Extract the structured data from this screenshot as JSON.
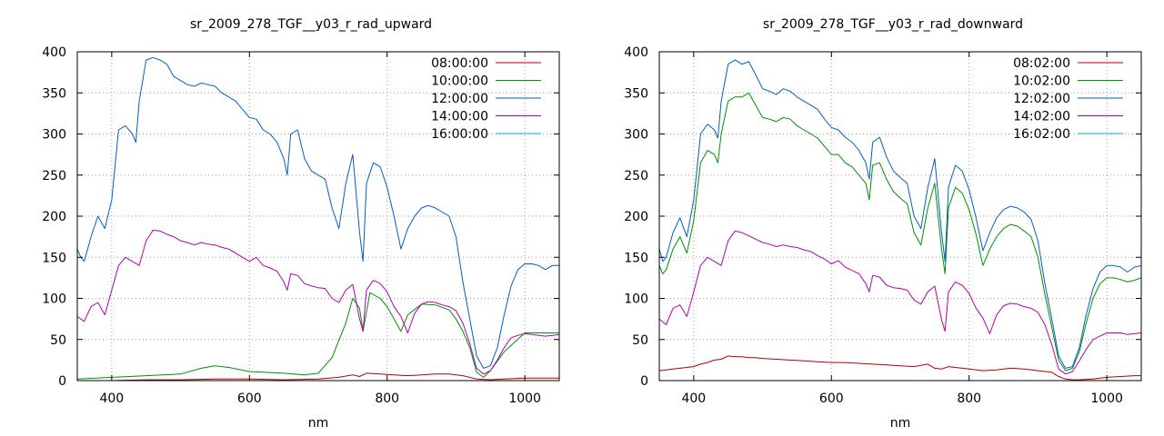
{
  "chart_data": [
    {
      "type": "line",
      "title": "sr_2009_278_TGF__y03_r_rad_upward",
      "xlabel": "nm",
      "ylabel": "",
      "xlim": [
        350,
        1050
      ],
      "ylim": [
        0,
        400
      ],
      "xticks": [
        400,
        600,
        800,
        1000
      ],
      "yticks": [
        0,
        50,
        100,
        150,
        200,
        250,
        300,
        350,
        400
      ],
      "grid": true,
      "legend_position": "top-right",
      "series": [
        {
          "name": "08:00:00",
          "color": "#b00000",
          "x": [
            350,
            400,
            450,
            500,
            550,
            600,
            650,
            700,
            730,
            750,
            760,
            770,
            790,
            810,
            830,
            850,
            870,
            890,
            910,
            930,
            950,
            970,
            1000,
            1050
          ],
          "y": [
            0,
            0,
            1,
            1,
            2,
            2,
            1,
            2,
            4,
            7,
            5,
            9,
            8,
            7,
            6,
            7,
            8,
            8,
            6,
            2,
            1,
            2,
            3,
            3
          ]
        },
        {
          "name": "10:00:00",
          "color": "#009000",
          "x": [
            350,
            400,
            450,
            500,
            530,
            550,
            570,
            600,
            650,
            680,
            700,
            720,
            740,
            750,
            760,
            765,
            775,
            790,
            800,
            810,
            820,
            830,
            850,
            870,
            890,
            900,
            910,
            920,
            930,
            940,
            950,
            970,
            1000,
            1050
          ],
          "y": [
            2,
            4,
            6,
            8,
            15,
            18,
            16,
            11,
            9,
            7,
            9,
            28,
            70,
            100,
            88,
            60,
            107,
            100,
            90,
            75,
            60,
            80,
            93,
            92,
            86,
            75,
            60,
            40,
            10,
            4,
            12,
            35,
            58,
            58
          ]
        },
        {
          "name": "12:00:00",
          "color": "#0060c0",
          "x": [
            350,
            355,
            360,
            370,
            380,
            390,
            400,
            410,
            420,
            430,
            435,
            440,
            450,
            460,
            470,
            480,
            490,
            500,
            510,
            520,
            530,
            540,
            550,
            560,
            570,
            580,
            590,
            600,
            610,
            620,
            630,
            640,
            650,
            655,
            660,
            670,
            680,
            690,
            700,
            710,
            720,
            730,
            740,
            750,
            760,
            765,
            770,
            780,
            790,
            800,
            810,
            820,
            830,
            840,
            850,
            860,
            870,
            880,
            890,
            900,
            910,
            920,
            930,
            940,
            950,
            960,
            970,
            980,
            990,
            1000,
            1010,
            1020,
            1030,
            1040,
            1050
          ],
          "y": [
            160,
            150,
            145,
            175,
            200,
            185,
            220,
            305,
            310,
            300,
            290,
            340,
            390,
            393,
            390,
            385,
            370,
            365,
            360,
            358,
            362,
            360,
            358,
            350,
            345,
            340,
            330,
            320,
            318,
            305,
            300,
            290,
            270,
            250,
            300,
            305,
            270,
            255,
            250,
            245,
            210,
            185,
            240,
            275,
            180,
            145,
            240,
            265,
            260,
            235,
            200,
            160,
            185,
            200,
            210,
            213,
            210,
            205,
            200,
            175,
            120,
            75,
            30,
            15,
            18,
            40,
            80,
            115,
            135,
            142,
            142,
            140,
            135,
            140,
            140
          ]
        },
        {
          "name": "14:00:00",
          "color": "#b000b0",
          "x": [
            350,
            360,
            370,
            380,
            390,
            400,
            410,
            420,
            430,
            440,
            450,
            460,
            470,
            480,
            490,
            500,
            510,
            520,
            530,
            540,
            550,
            560,
            570,
            580,
            590,
            600,
            610,
            620,
            630,
            640,
            650,
            655,
            660,
            670,
            680,
            690,
            700,
            710,
            720,
            730,
            740,
            750,
            760,
            765,
            770,
            780,
            790,
            800,
            810,
            820,
            830,
            840,
            850,
            860,
            870,
            880,
            890,
            900,
            910,
            920,
            930,
            940,
            950,
            960,
            970,
            980,
            990,
            1000,
            1010,
            1020,
            1030,
            1040,
            1050
          ],
          "y": [
            78,
            72,
            90,
            95,
            80,
            110,
            140,
            150,
            145,
            140,
            170,
            183,
            182,
            178,
            175,
            170,
            168,
            165,
            168,
            166,
            165,
            162,
            160,
            155,
            150,
            145,
            150,
            140,
            137,
            133,
            120,
            110,
            130,
            128,
            118,
            115,
            113,
            112,
            100,
            95,
            110,
            117,
            75,
            60,
            110,
            122,
            118,
            108,
            90,
            78,
            58,
            82,
            93,
            96,
            95,
            92,
            90,
            85,
            70,
            45,
            15,
            8,
            12,
            25,
            40,
            52,
            55,
            57,
            56,
            55,
            54,
            55,
            56
          ]
        },
        {
          "name": "16:00:00",
          "color": "#00c0d0",
          "x": [
            350,
            1050
          ],
          "y": [
            0,
            0
          ]
        }
      ]
    },
    {
      "type": "line",
      "title": "sr_2009_278_TGF__y03_r_rad_downward",
      "xlabel": "nm",
      "ylabel": "",
      "xlim": [
        350,
        1050
      ],
      "ylim": [
        0,
        400
      ],
      "xticks": [
        400,
        600,
        800,
        1000
      ],
      "yticks": [
        0,
        50,
        100,
        150,
        200,
        250,
        300,
        350,
        400
      ],
      "grid": true,
      "legend_position": "top-right",
      "series": [
        {
          "name": "08:02:00",
          "color": "#b00000",
          "x": [
            350,
            360,
            370,
            380,
            390,
            400,
            410,
            420,
            430,
            440,
            450,
            460,
            470,
            480,
            490,
            500,
            520,
            540,
            560,
            580,
            600,
            620,
            640,
            660,
            680,
            700,
            720,
            740,
            750,
            760,
            770,
            780,
            800,
            820,
            840,
            860,
            880,
            900,
            920,
            930,
            940,
            950,
            960,
            980,
            1000,
            1020,
            1040,
            1050
          ],
          "y": [
            12,
            13,
            14,
            15,
            16,
            17,
            20,
            22,
            25,
            26,
            30,
            29,
            29,
            28,
            28,
            27,
            26,
            25,
            24,
            23,
            22,
            22,
            21,
            20,
            19,
            18,
            17,
            20,
            15,
            14,
            17,
            16,
            14,
            12,
            13,
            15,
            14,
            12,
            10,
            5,
            2,
            1,
            1,
            2,
            4,
            5,
            6,
            6
          ]
        },
        {
          "name": "10:02:00",
          "color": "#009000",
          "x": [
            350,
            355,
            360,
            370,
            380,
            390,
            400,
            410,
            420,
            430,
            435,
            440,
            450,
            460,
            470,
            480,
            490,
            500,
            510,
            520,
            530,
            540,
            550,
            560,
            570,
            580,
            590,
            600,
            610,
            620,
            630,
            640,
            650,
            655,
            660,
            670,
            680,
            690,
            700,
            710,
            720,
            730,
            740,
            750,
            760,
            765,
            770,
            780,
            790,
            800,
            810,
            820,
            830,
            840,
            850,
            860,
            870,
            880,
            890,
            900,
            910,
            920,
            930,
            940,
            950,
            960,
            970,
            980,
            990,
            1000,
            1010,
            1020,
            1030,
            1040,
            1050
          ],
          "y": [
            140,
            130,
            135,
            160,
            175,
            155,
            195,
            265,
            280,
            275,
            265,
            300,
            340,
            345,
            345,
            350,
            335,
            320,
            318,
            315,
            320,
            318,
            310,
            305,
            300,
            295,
            285,
            275,
            275,
            265,
            260,
            250,
            240,
            220,
            262,
            265,
            245,
            230,
            222,
            215,
            180,
            165,
            210,
            240,
            160,
            130,
            210,
            235,
            228,
            208,
            178,
            140,
            160,
            175,
            185,
            190,
            188,
            182,
            175,
            150,
            105,
            65,
            25,
            12,
            15,
            35,
            70,
            100,
            118,
            125,
            125,
            123,
            120,
            122,
            125
          ]
        },
        {
          "name": "12:02:00",
          "color": "#0060c0",
          "x": [
            350,
            355,
            360,
            370,
            380,
            390,
            400,
            410,
            420,
            430,
            435,
            440,
            450,
            460,
            470,
            480,
            490,
            500,
            510,
            520,
            530,
            540,
            550,
            560,
            570,
            580,
            590,
            600,
            610,
            620,
            630,
            640,
            650,
            655,
            660,
            670,
            680,
            690,
            700,
            710,
            720,
            730,
            740,
            750,
            760,
            765,
            770,
            780,
            790,
            800,
            810,
            820,
            830,
            840,
            850,
            860,
            870,
            880,
            890,
            900,
            910,
            920,
            930,
            940,
            950,
            960,
            970,
            980,
            990,
            1000,
            1010,
            1020,
            1030,
            1040,
            1050
          ],
          "y": [
            160,
            145,
            150,
            180,
            198,
            175,
            220,
            300,
            312,
            305,
            295,
            340,
            385,
            390,
            385,
            388,
            372,
            355,
            352,
            348,
            355,
            352,
            345,
            340,
            335,
            330,
            318,
            308,
            305,
            296,
            290,
            280,
            265,
            245,
            290,
            296,
            272,
            255,
            247,
            240,
            200,
            185,
            235,
            270,
            180,
            145,
            235,
            262,
            255,
            232,
            198,
            158,
            180,
            198,
            208,
            212,
            210,
            205,
            196,
            170,
            118,
            75,
            30,
            15,
            17,
            40,
            80,
            112,
            132,
            140,
            140,
            138,
            132,
            138,
            140
          ]
        },
        {
          "name": "14:02:00",
          "color": "#b000b0",
          "x": [
            350,
            360,
            370,
            380,
            390,
            400,
            410,
            420,
            430,
            440,
            450,
            460,
            470,
            480,
            490,
            500,
            510,
            520,
            530,
            540,
            550,
            560,
            570,
            580,
            590,
            600,
            610,
            620,
            630,
            640,
            650,
            655,
            660,
            670,
            680,
            690,
            700,
            710,
            720,
            730,
            740,
            750,
            760,
            765,
            770,
            780,
            790,
            800,
            810,
            820,
            830,
            840,
            850,
            860,
            870,
            880,
            890,
            900,
            910,
            920,
            930,
            940,
            950,
            960,
            970,
            980,
            990,
            1000,
            1010,
            1020,
            1030,
            1040,
            1050
          ],
          "y": [
            75,
            68,
            88,
            92,
            78,
            108,
            140,
            150,
            145,
            140,
            170,
            182,
            180,
            176,
            172,
            168,
            166,
            163,
            165,
            163,
            162,
            159,
            157,
            152,
            148,
            142,
            146,
            138,
            134,
            130,
            118,
            108,
            128,
            126,
            116,
            113,
            112,
            110,
            98,
            93,
            108,
            115,
            74,
            60,
            108,
            120,
            116,
            106,
            88,
            76,
            57,
            80,
            91,
            94,
            93,
            90,
            88,
            83,
            68,
            44,
            14,
            8,
            11,
            24,
            38,
            50,
            54,
            58,
            58,
            58,
            56,
            57,
            58
          ]
        },
        {
          "name": "16:02:00",
          "color": "#00c0d0",
          "x": [
            350,
            1050
          ],
          "y": [
            0,
            0
          ]
        }
      ]
    }
  ]
}
